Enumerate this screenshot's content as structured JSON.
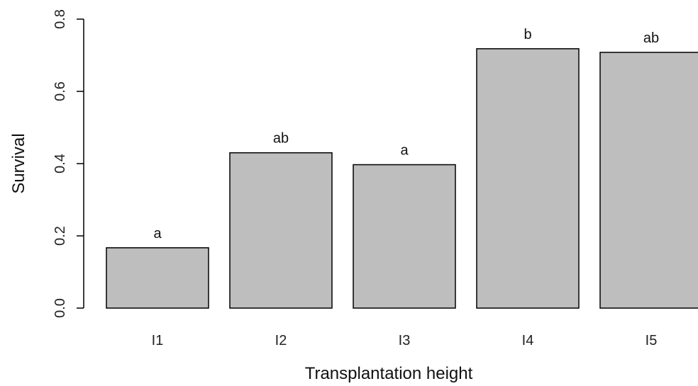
{
  "chart_data": {
    "type": "bar",
    "categories": [
      "I1",
      "I2",
      "I3",
      "I4",
      "I5"
    ],
    "values": [
      0.167,
      0.43,
      0.397,
      0.718,
      0.708
    ],
    "data_labels": [
      "a",
      "ab",
      "a",
      "b",
      "ab"
    ],
    "xlabel": "Transplantation height",
    "ylabel": "Survival",
    "ylim": [
      0,
      0.8
    ],
    "yticks": [
      0.0,
      0.2,
      0.4,
      0.6,
      0.8
    ],
    "ytick_labels": [
      "0.0",
      "0.2",
      "0.4",
      "0.6",
      "0.8"
    ],
    "grid": false,
    "colors": {
      "bar_fill": "#bebebe",
      "bar_stroke": "#000000",
      "axis": "#000000"
    }
  }
}
